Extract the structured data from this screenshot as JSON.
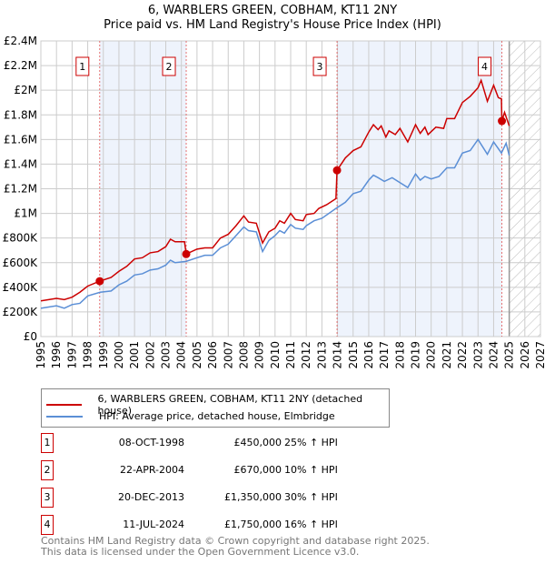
{
  "title": "6, WARBLERS GREEN, COBHAM, KT11 2NY",
  "subtitle": "Price paid vs. HM Land Registry's House Price Index (HPI)",
  "colors": {
    "property": "#cc0000",
    "hpi": "#5b8fd6",
    "shade": "#eef3fc",
    "grid": "#cccccc"
  },
  "chart_data": {
    "type": "line",
    "title": "6, WARBLERS GREEN, COBHAM, KT11 2NY — Price paid vs. HM Land Registry's House Price Index (HPI)",
    "xlim": [
      1995,
      2027
    ],
    "ylim": [
      0,
      2400000
    ],
    "xticks": [
      "1995",
      "1996",
      "1997",
      "1998",
      "1999",
      "2000",
      "2001",
      "2002",
      "2003",
      "2004",
      "2005",
      "2006",
      "2007",
      "2008",
      "2009",
      "2010",
      "2011",
      "2012",
      "2013",
      "2014",
      "2015",
      "2016",
      "2017",
      "2018",
      "2019",
      "2020",
      "2021",
      "2022",
      "2023",
      "2024",
      "2025",
      "2026",
      "2027"
    ],
    "yticks": [
      {
        "v": 0,
        "l": "£0"
      },
      {
        "v": 200000,
        "l": "£200K"
      },
      {
        "v": 400000,
        "l": "£400K"
      },
      {
        "v": 600000,
        "l": "£600K"
      },
      {
        "v": 800000,
        "l": "£800K"
      },
      {
        "v": 1000000,
        "l": "£1M"
      },
      {
        "v": 1200000,
        "l": "£1.2M"
      },
      {
        "v": 1400000,
        "l": "£1.4M"
      },
      {
        "v": 1600000,
        "l": "£1.6M"
      },
      {
        "v": 1800000,
        "l": "£1.8M"
      },
      {
        "v": 2000000,
        "l": "£2M"
      },
      {
        "v": 2200000,
        "l": "£2.2M"
      },
      {
        "v": 2400000,
        "l": "£2.4M"
      }
    ],
    "forecast_from": 2025,
    "series": [
      {
        "name": "6, WARBLERS GREEN, COBHAM, KT11 2NY (detached house)",
        "color": "#cc0000",
        "x": [
          1995,
          1996,
          1996.5,
          1997,
          1997.5,
          1998,
          1998.77,
          1999.5,
          2000,
          2000.5,
          2001,
          2001.5,
          2002,
          2002.5,
          2003,
          2003.3,
          2003.6,
          2004.2,
          2004.31,
          2005,
          2005.5,
          2006,
          2006.5,
          2007,
          2007.5,
          2008,
          2008.3,
          2008.8,
          2009.2,
          2009.6,
          2010,
          2010.3,
          2010.6,
          2011,
          2011.3,
          2011.8,
          2012,
          2012.5,
          2012.8,
          2013.3,
          2013.9,
          2013.97,
          2014.5,
          2015,
          2015.5,
          2016,
          2016.3,
          2016.6,
          2016.8,
          2017.1,
          2017.3,
          2017.7,
          2018,
          2018.5,
          2019,
          2019.3,
          2019.6,
          2019.8,
          2020.3,
          2020.8,
          2021,
          2021.5,
          2022,
          2022.5,
          2023,
          2023.2,
          2023.6,
          2024,
          2024.3,
          2024.5,
          2024.53,
          2024.7,
          2025
        ],
        "y": [
          290000,
          310000,
          300000,
          320000,
          360000,
          410000,
          450000,
          480000,
          530000,
          570000,
          630000,
          640000,
          680000,
          690000,
          730000,
          790000,
          770000,
          770000,
          670000,
          710000,
          720000,
          720000,
          800000,
          830000,
          900000,
          980000,
          930000,
          920000,
          760000,
          850000,
          880000,
          940000,
          920000,
          1000000,
          950000,
          940000,
          990000,
          1000000,
          1040000,
          1070000,
          1120000,
          1350000,
          1450000,
          1510000,
          1540000,
          1660000,
          1720000,
          1680000,
          1710000,
          1620000,
          1670000,
          1640000,
          1690000,
          1580000,
          1720000,
          1650000,
          1700000,
          1640000,
          1700000,
          1690000,
          1770000,
          1770000,
          1900000,
          1950000,
          2020000,
          2080000,
          1910000,
          2040000,
          1940000,
          1930000,
          1750000,
          1820000,
          1710000
        ]
      },
      {
        "name": "HPI: Average price, detached house, Elmbridge",
        "color": "#5b8fd6",
        "x": [
          1995,
          1996,
          1996.5,
          1997,
          1997.5,
          1998,
          1998.8,
          1999.5,
          2000,
          2000.5,
          2001,
          2001.5,
          2002,
          2002.5,
          2003,
          2003.3,
          2003.6,
          2004.3,
          2005,
          2005.5,
          2006,
          2006.5,
          2007,
          2007.5,
          2008,
          2008.3,
          2008.8,
          2009.2,
          2009.6,
          2010,
          2010.3,
          2010.6,
          2011,
          2011.3,
          2011.8,
          2012,
          2012.5,
          2013,
          2013.9,
          2014.5,
          2015,
          2015.5,
          2016,
          2016.3,
          2016.6,
          2017,
          2017.5,
          2018,
          2018.5,
          2019,
          2019.3,
          2019.6,
          2020,
          2020.5,
          2021,
          2021.5,
          2022,
          2022.5,
          2023,
          2023.6,
          2024,
          2024.5,
          2024.8,
          2025
        ],
        "y": [
          230000,
          250000,
          230000,
          260000,
          270000,
          330000,
          360000,
          370000,
          420000,
          450000,
          500000,
          510000,
          540000,
          550000,
          580000,
          620000,
          600000,
          610000,
          640000,
          660000,
          660000,
          720000,
          750000,
          820000,
          890000,
          860000,
          850000,
          690000,
          780000,
          820000,
          860000,
          840000,
          910000,
          880000,
          870000,
          900000,
          940000,
          960000,
          1040000,
          1090000,
          1160000,
          1180000,
          1270000,
          1310000,
          1290000,
          1260000,
          1290000,
          1250000,
          1210000,
          1320000,
          1270000,
          1300000,
          1280000,
          1300000,
          1370000,
          1370000,
          1490000,
          1510000,
          1600000,
          1480000,
          1580000,
          1490000,
          1570000,
          1470000
        ]
      }
    ],
    "sales": [
      {
        "label": "1",
        "x": 1998.77,
        "y": 450000
      },
      {
        "label": "2",
        "x": 2004.31,
        "y": 670000
      },
      {
        "label": "3",
        "x": 2013.97,
        "y": 1350000
      },
      {
        "label": "4",
        "x": 2024.53,
        "y": 1750000
      }
    ],
    "legend_placement": "below"
  },
  "legend": [
    "6, WARBLERS GREEN, COBHAM, KT11 2NY (detached house)",
    "HPI: Average price, detached house, Elmbridge"
  ],
  "table": [
    {
      "num": "1",
      "date": "08-OCT-1998",
      "price": "£450,000",
      "hpi": "25% ↑ HPI"
    },
    {
      "num": "2",
      "date": "22-APR-2004",
      "price": "£670,000",
      "hpi": "10% ↑ HPI"
    },
    {
      "num": "3",
      "date": "20-DEC-2013",
      "price": "£1,350,000",
      "hpi": "30% ↑ HPI"
    },
    {
      "num": "4",
      "date": "11-JUL-2024",
      "price": "£1,750,000",
      "hpi": "16% ↑ HPI"
    }
  ],
  "footer": [
    "Contains HM Land Registry data © Crown copyright and database right 2025.",
    "This data is licensed under the Open Government Licence v3.0."
  ]
}
